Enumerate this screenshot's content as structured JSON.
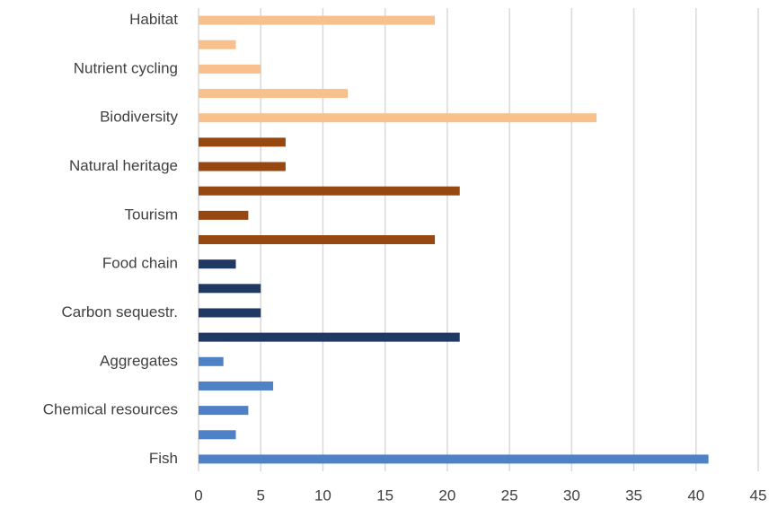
{
  "chart_data": {
    "type": "barh",
    "categories": [
      "Fish",
      null,
      "Chemical resources",
      null,
      "Aggregates",
      null,
      "Carbon sequestr.",
      null,
      "Food chain",
      null,
      "Tourism",
      null,
      "Natural heritage",
      null,
      "Biodiversity",
      null,
      "Nutrient cycling",
      null,
      "Habitat"
    ],
    "values": [
      41,
      3,
      4,
      6,
      2,
      21,
      5,
      5,
      3,
      19,
      4,
      21,
      7,
      7,
      32,
      12,
      5,
      3,
      19
    ],
    "colors": [
      "#4f81c7",
      "#4f81c7",
      "#4f81c7",
      "#4f81c7",
      "#4f81c7",
      "#203864",
      "#203864",
      "#203864",
      "#203864",
      "#974811",
      "#974811",
      "#974811",
      "#974811",
      "#974811",
      "#f8c08c",
      "#f8c08c",
      "#f8c08c",
      "#f8c08c",
      "#f8c08c"
    ],
    "xlim": [
      0,
      45
    ],
    "xticks": [
      0,
      5,
      10,
      15,
      20,
      25,
      30,
      35,
      40,
      45
    ],
    "grid": true
  }
}
